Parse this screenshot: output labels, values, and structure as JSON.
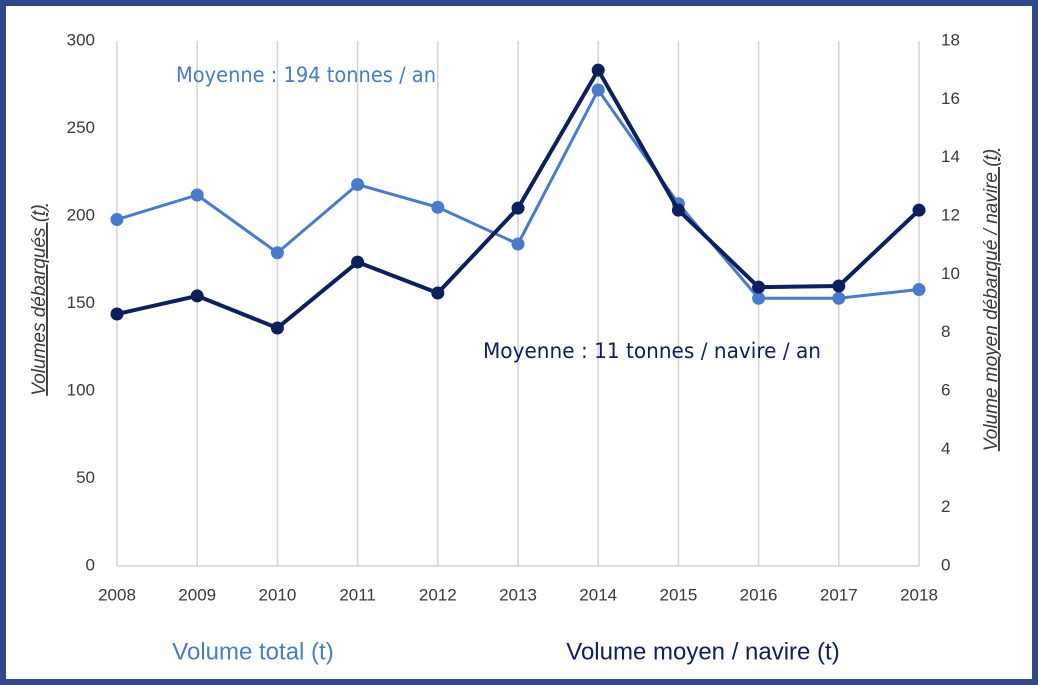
{
  "chart_data": {
    "type": "line",
    "categories": [
      "2008",
      "2009",
      "2010",
      "2011",
      "2012",
      "2013",
      "2014",
      "2015",
      "2016",
      "2017",
      "2018"
    ],
    "series": [
      {
        "name": "Volume total (t)",
        "color": "#4a7bcb",
        "axis": "y",
        "values": [
          198,
          212,
          179,
          218,
          205,
          184,
          272,
          207,
          153,
          153,
          158
        ]
      },
      {
        "name": "Volume moyen / navire (t)",
        "color": "#0d1f5c",
        "axis": "y2",
        "values": [
          8.64,
          9.26,
          8.16,
          10.42,
          9.36,
          12.27,
          17.0,
          12.2,
          9.56,
          9.6,
          12.2
        ]
      }
    ],
    "ylabel": "Volumes débarqués (t)",
    "y2label": "Volume moyen débarqué / navire (t)",
    "annotations": [
      "Moyenne : 194 tonnes / an",
      "Moyenne : 11 tonnes / navire / an"
    ],
    "ylim": [
      0,
      300
    ],
    "yticks": [
      0,
      50,
      100,
      150,
      200,
      250,
      300
    ],
    "y2lim": [
      0,
      18
    ],
    "y2ticks": [
      0,
      2,
      4,
      6,
      8,
      10,
      12,
      14,
      16,
      18
    ],
    "grid": true,
    "legend": "bottom"
  }
}
